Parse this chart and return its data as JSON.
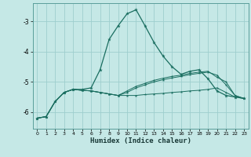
{
  "xlabel": "Humidex (Indice chaleur)",
  "bg_color": "#c5e8e6",
  "grid_color": "#9ecece",
  "line_color": "#1a6e60",
  "x_values": [
    0,
    1,
    2,
    3,
    4,
    5,
    6,
    7,
    8,
    9,
    10,
    11,
    12,
    13,
    14,
    15,
    16,
    17,
    18,
    19,
    20,
    21,
    22,
    23
  ],
  "line1": [
    -6.2,
    -6.15,
    -5.65,
    -5.35,
    -5.25,
    -5.25,
    -5.2,
    -4.6,
    -3.6,
    -3.15,
    -2.75,
    -2.62,
    -3.15,
    -3.7,
    -4.15,
    -4.5,
    -4.75,
    -4.65,
    -4.6,
    -4.9,
    -5.3,
    -5.45,
    -5.5,
    -5.55
  ],
  "line2": [
    -6.2,
    -6.15,
    -5.65,
    -5.35,
    -5.25,
    -5.28,
    -5.3,
    -5.35,
    -5.4,
    -5.45,
    -5.45,
    -5.45,
    -5.42,
    -5.4,
    -5.38,
    -5.35,
    -5.33,
    -5.3,
    -5.28,
    -5.25,
    -5.2,
    -5.35,
    -5.5,
    -5.55
  ],
  "line3": [
    -6.2,
    -6.15,
    -5.65,
    -5.35,
    -5.25,
    -5.28,
    -5.3,
    -5.35,
    -5.4,
    -5.45,
    -5.3,
    -5.15,
    -5.05,
    -4.95,
    -4.88,
    -4.82,
    -4.78,
    -4.72,
    -4.68,
    -4.65,
    -4.85,
    -5.0,
    -5.45,
    -5.55
  ],
  "line4": [
    -6.2,
    -6.15,
    -5.65,
    -5.35,
    -5.25,
    -5.28,
    -5.3,
    -5.35,
    -5.4,
    -5.45,
    -5.35,
    -5.2,
    -5.1,
    -5.0,
    -4.93,
    -4.87,
    -4.82,
    -4.76,
    -4.72,
    -4.68,
    -4.78,
    -5.1,
    -5.45,
    -5.55
  ],
  "ylim": [
    -6.55,
    -2.4
  ],
  "xlim": [
    -0.5,
    23.5
  ],
  "yticks": [
    -6,
    -5,
    -4,
    -3
  ],
  "xticks": [
    0,
    1,
    2,
    3,
    4,
    5,
    6,
    7,
    8,
    9,
    10,
    11,
    12,
    13,
    14,
    15,
    16,
    17,
    18,
    19,
    20,
    21,
    22,
    23
  ]
}
